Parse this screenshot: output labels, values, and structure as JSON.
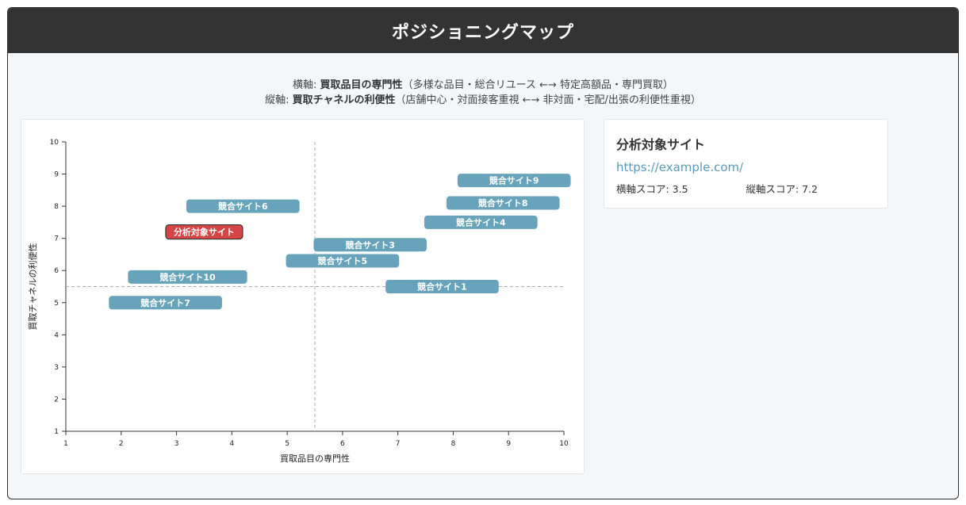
{
  "header": {
    "title": "ポジショニングマップ"
  },
  "axis_description": {
    "x_prefix": "横軸: ",
    "x_name": "買取品目の専門性",
    "x_detail": "（多様な品目・総合リユース ←→ 特定高額品・専門買取）",
    "y_prefix": "縦軸: ",
    "y_name": "買取チャネルの利便性",
    "y_detail": "（店舗中心・対面接客重視 ←→ 非対面・宅配/出張の利便性重視）"
  },
  "info_panel": {
    "title": "分析対象サイト",
    "url": "https://example.com/",
    "x_score_label": "横軸スコア: 3.5",
    "y_score_label": "縦軸スコア: 7.2"
  },
  "colors": {
    "competitor": "#67a3ba",
    "target": "#d64545",
    "target_border": "#333333",
    "header_bg": "#333333",
    "link": "#5b9ab5"
  },
  "chart_data": {
    "type": "scatter",
    "xlabel": "買取品目の専門性",
    "ylabel": "買取チャネルの利便性",
    "xlim": [
      1,
      10
    ],
    "ylim": [
      1,
      10
    ],
    "xticks": [
      1,
      2,
      3,
      4,
      5,
      6,
      7,
      8,
      9,
      10
    ],
    "yticks": [
      1,
      2,
      3,
      4,
      5,
      6,
      7,
      8,
      9,
      10
    ],
    "reference_lines": {
      "x": 5.5,
      "y": 5.5
    },
    "grid": false,
    "points": [
      {
        "label": "競合サイト9",
        "x": 9.1,
        "y": 8.8,
        "kind": "competitor"
      },
      {
        "label": "競合サイト8",
        "x": 8.9,
        "y": 8.1,
        "kind": "competitor"
      },
      {
        "label": "競合サイト6",
        "x": 4.2,
        "y": 8.0,
        "kind": "competitor"
      },
      {
        "label": "競合サイト4",
        "x": 8.5,
        "y": 7.5,
        "kind": "competitor"
      },
      {
        "label": "分析対象サイト",
        "x": 3.5,
        "y": 7.2,
        "kind": "target"
      },
      {
        "label": "競合サイト3",
        "x": 6.5,
        "y": 6.8,
        "kind": "competitor"
      },
      {
        "label": "競合サイト5",
        "x": 6.0,
        "y": 6.3,
        "kind": "competitor"
      },
      {
        "label": "競合サイト10",
        "x": 3.2,
        "y": 5.8,
        "kind": "competitor"
      },
      {
        "label": "競合サイト1",
        "x": 7.8,
        "y": 5.5,
        "kind": "competitor"
      },
      {
        "label": "競合サイト7",
        "x": 2.8,
        "y": 5.0,
        "kind": "competitor"
      }
    ]
  }
}
